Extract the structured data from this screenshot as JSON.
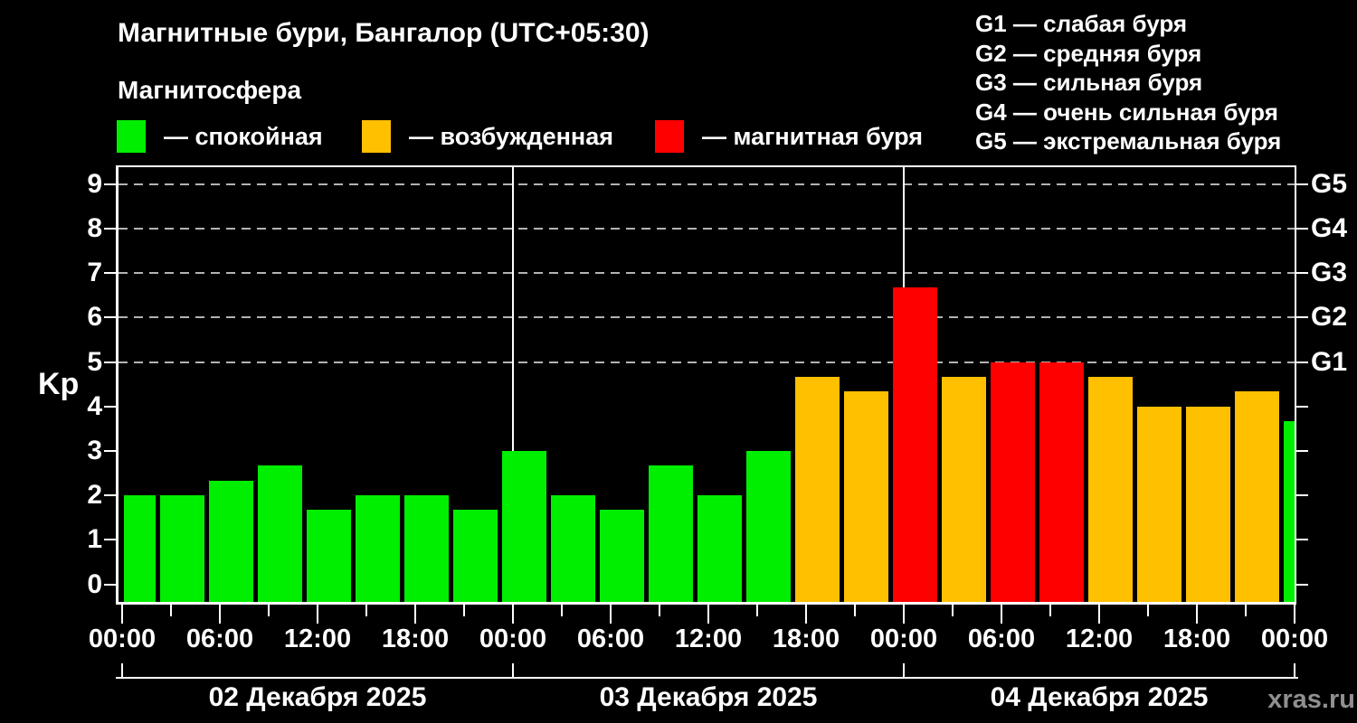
{
  "title": "Магнитные бури, Бангалор (UTC+05:30)",
  "subtitle": "Магнитосфера",
  "watermark": "xras.ru",
  "legend": {
    "items": [
      {
        "status": "quiet",
        "label": "— спокойная"
      },
      {
        "status": "excited",
        "label": "— возбужденная"
      },
      {
        "status": "storm",
        "label": "— магнитная буря"
      }
    ]
  },
  "storm_scale_legend": {
    "items": [
      "G1 — слабая буря",
      "G2 — средняя буря",
      "G3 — сильная буря",
      "G4 — очень сильная буря",
      "G5 — экстремальная буря"
    ]
  },
  "chart_data": {
    "type": "bar",
    "title": "Магнитные бури, Бангалор (UTC+05:30)",
    "ylabel": "Kp",
    "ylim": [
      -0.45,
      9.4
    ],
    "xlim_hours": [
      -0.4,
      72.1
    ],
    "grid": "horizontal dashed lines at Kp 5,6,7,8,9",
    "legend_position": "top-left and top-right",
    "colors": {
      "quiet": "#00ee00",
      "excited": "#ffc000",
      "storm": "#ff0000",
      "grid": "#b3b3b3",
      "axis": "#ffffff",
      "background": "#000000"
    },
    "y_ticks": [
      0,
      1,
      2,
      3,
      4,
      5,
      6,
      7,
      8,
      9
    ],
    "x_tick_labels": [
      "00:00",
      "06:00",
      "12:00",
      "18:00",
      "00:00",
      "06:00",
      "12:00",
      "18:00",
      "00:00",
      "06:00",
      "12:00",
      "18:00",
      "00:00"
    ],
    "right_axis": [
      {
        "label": "G5",
        "kp": 9
      },
      {
        "label": "G4",
        "kp": 8
      },
      {
        "label": "G3",
        "kp": 7
      },
      {
        "label": "G2",
        "kp": 6
      },
      {
        "label": "G1",
        "kp": 5
      }
    ],
    "day_boundaries_h": [
      0,
      24,
      48,
      72
    ],
    "dates": [
      {
        "label": "02 Декабря 2025",
        "from_h": 0,
        "to_h": 24
      },
      {
        "label": "03 Декабря 2025",
        "from_h": 24,
        "to_h": 48
      },
      {
        "label": "04 Декабря 2025",
        "from_h": 48,
        "to_h": 72
      }
    ],
    "bars": [
      {
        "start_h": 0.1,
        "end_h": 2.06,
        "kp": 2,
        "status": "quiet"
      },
      {
        "start_h": 2.34,
        "end_h": 5.06,
        "kp": 2,
        "status": "quiet"
      },
      {
        "start_h": 5.34,
        "end_h": 8.06,
        "kp": 2.33,
        "status": "quiet"
      },
      {
        "start_h": 8.34,
        "end_h": 11.06,
        "kp": 2.67,
        "status": "quiet"
      },
      {
        "start_h": 11.34,
        "end_h": 14.06,
        "kp": 1.67,
        "status": "quiet"
      },
      {
        "start_h": 14.34,
        "end_h": 17.06,
        "kp": 2,
        "status": "quiet"
      },
      {
        "start_h": 17.34,
        "end_h": 20.06,
        "kp": 2,
        "status": "quiet"
      },
      {
        "start_h": 20.34,
        "end_h": 23.06,
        "kp": 1.67,
        "status": "quiet"
      },
      {
        "start_h": 23.34,
        "end_h": 26.06,
        "kp": 3,
        "status": "quiet"
      },
      {
        "start_h": 26.34,
        "end_h": 29.06,
        "kp": 2,
        "status": "quiet"
      },
      {
        "start_h": 29.34,
        "end_h": 32.06,
        "kp": 1.67,
        "status": "quiet"
      },
      {
        "start_h": 32.34,
        "end_h": 35.06,
        "kp": 2.67,
        "status": "quiet"
      },
      {
        "start_h": 35.34,
        "end_h": 38.06,
        "kp": 2,
        "status": "quiet"
      },
      {
        "start_h": 38.34,
        "end_h": 41.06,
        "kp": 3,
        "status": "quiet"
      },
      {
        "start_h": 41.34,
        "end_h": 44.06,
        "kp": 4.67,
        "status": "excited"
      },
      {
        "start_h": 44.34,
        "end_h": 47.06,
        "kp": 4.33,
        "status": "excited"
      },
      {
        "start_h": 47.34,
        "end_h": 50.06,
        "kp": 6.67,
        "status": "storm"
      },
      {
        "start_h": 50.34,
        "end_h": 53.06,
        "kp": 4.67,
        "status": "excited"
      },
      {
        "start_h": 53.34,
        "end_h": 56.06,
        "kp": 5,
        "status": "storm"
      },
      {
        "start_h": 56.34,
        "end_h": 59.06,
        "kp": 5,
        "status": "storm"
      },
      {
        "start_h": 59.34,
        "end_h": 62.06,
        "kp": 4.67,
        "status": "excited"
      },
      {
        "start_h": 62.34,
        "end_h": 65.06,
        "kp": 4,
        "status": "excited"
      },
      {
        "start_h": 65.34,
        "end_h": 68.06,
        "kp": 4,
        "status": "excited"
      },
      {
        "start_h": 68.34,
        "end_h": 71.06,
        "kp": 4.33,
        "status": "excited"
      },
      {
        "start_h": 71.34,
        "end_h": 72.02,
        "kp": 3.67,
        "status": "quiet"
      }
    ]
  }
}
